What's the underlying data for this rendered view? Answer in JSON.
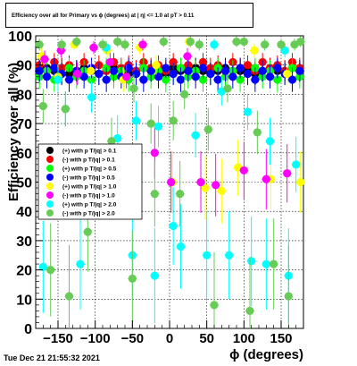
{
  "title": "Efficiency over all for Primary vs ϕ (degrees) at |  η| <= 1.0 at pT > 0.11",
  "footer": "Tue Dec 21 21:55:32 2021",
  "chart_data": {
    "type": "scatter",
    "title": "Efficiency over all for Primary vs ϕ (degrees) at |  η| <= 1.0 at pT > 0.11",
    "xlabel": "ϕ (degrees)",
    "ylabel": "Efficiency over all (%)",
    "xlim": [
      -180,
      180
    ],
    "ylim": [
      0,
      100
    ],
    "x_ticks": [
      -150,
      -100,
      -50,
      0,
      50,
      100,
      150
    ],
    "x_tick_labels": [
      "−150",
      "−100",
      "−50",
      "0",
      "50",
      "100",
      "150"
    ],
    "y_ticks": [
      0,
      10,
      20,
      30,
      40,
      50,
      60,
      70,
      80,
      90,
      100
    ],
    "grid": true,
    "legend_position": "left-middle",
    "series": [
      {
        "name": "(+) with p T/|q| > 0.1",
        "color": "#000000",
        "x": [
          -175,
          -165,
          -155,
          -145,
          -135,
          -125,
          -115,
          -105,
          -95,
          -85,
          -75,
          -65,
          -55,
          -45,
          -35,
          -25,
          -15,
          -5,
          5,
          15,
          25,
          35,
          45,
          55,
          65,
          75,
          85,
          95,
          105,
          115,
          125,
          135,
          145,
          155,
          165,
          175
        ],
        "y": [
          88,
          89,
          88,
          89,
          87,
          88,
          89,
          88,
          87,
          88,
          89,
          88,
          87,
          88,
          89,
          88,
          88,
          87,
          89,
          88,
          88,
          89,
          88,
          87,
          88,
          89,
          88,
          88,
          89,
          87,
          88,
          89,
          88,
          88,
          89,
          88
        ]
      },
      {
        "name": "(-) with p T/|q| > 0.1",
        "color": "#ff0000",
        "x": [
          -175,
          -165,
          -155,
          -145,
          -135,
          -125,
          -115,
          -105,
          -95,
          -85,
          -75,
          -65,
          -55,
          -45,
          -35,
          -25,
          -15,
          -5,
          5,
          15,
          25,
          35,
          45,
          55,
          65,
          75,
          85,
          95,
          105,
          115,
          125,
          135,
          145,
          155,
          165,
          175
        ],
        "y": [
          90,
          88,
          91,
          89,
          90,
          88,
          91,
          89,
          90,
          88,
          91,
          89,
          90,
          88,
          91,
          89,
          90,
          88,
          91,
          89,
          90,
          88,
          91,
          89,
          90,
          88,
          91,
          89,
          90,
          88,
          91,
          89,
          90,
          88,
          91,
          89
        ]
      },
      {
        "name": "(+) with p T/|q| > 0.5",
        "color": "#00ff00",
        "x": [
          -175,
          -165,
          -155,
          -145,
          -135,
          -125,
          -115,
          -105,
          -95,
          -85,
          -75,
          -65,
          -55,
          -45,
          -35,
          -25,
          -15,
          -5,
          5,
          15,
          25,
          35,
          45,
          55,
          65,
          75,
          85,
          95,
          105,
          115,
          125,
          135,
          145,
          155,
          165,
          175
        ],
        "y": [
          86,
          88,
          85,
          87,
          89,
          86,
          88,
          85,
          87,
          89,
          86,
          88,
          85,
          87,
          89,
          86,
          88,
          85,
          87,
          89,
          86,
          88,
          85,
          87,
          89,
          86,
          88,
          85,
          87,
          89,
          86,
          88,
          85,
          87,
          89,
          86
        ]
      },
      {
        "name": "(-) with p T/|q| > 0.5",
        "color": "#0000ff",
        "x": [
          -175,
          -165,
          -155,
          -145,
          -135,
          -125,
          -115,
          -105,
          -95,
          -85,
          -75,
          -65,
          -55,
          -45,
          -35,
          -25,
          -15,
          -5,
          5,
          15,
          25,
          35,
          45,
          55,
          65,
          75,
          85,
          95,
          105,
          115,
          125,
          135,
          145,
          155,
          165,
          175
        ],
        "y": [
          88,
          86,
          89,
          87,
          85,
          88,
          86,
          89,
          87,
          85,
          88,
          86,
          89,
          87,
          85,
          88,
          86,
          89,
          87,
          85,
          88,
          86,
          89,
          87,
          85,
          88,
          86,
          89,
          87,
          85,
          88,
          86,
          89,
          87,
          85,
          88
        ]
      },
      {
        "name": "(+) with p T/|q| > 1.0",
        "color": "#ffff00",
        "x": [
          -172,
          -150,
          -128,
          -106,
          -84,
          -62,
          -40,
          -18,
          4,
          26,
          48,
          70,
          92,
          114,
          136,
          158,
          176
        ],
        "y": [
          93,
          86,
          97,
          88,
          95,
          85,
          96,
          90,
          50,
          98,
          48,
          47,
          55,
          95,
          51,
          87,
          50
        ]
      },
      {
        "name": "(-) with p T/|q| > 1.0",
        "color": "#ff00ff",
        "x": [
          -168,
          -146,
          -124,
          -102,
          -80,
          -58,
          -36,
          -20,
          2,
          24,
          42,
          62,
          100,
          130,
          158
        ],
        "y": [
          92,
          95,
          87,
          96,
          91,
          86,
          97,
          60,
          50,
          93,
          50,
          49,
          54,
          51,
          53
        ]
      },
      {
        "name": "(+) with p T/|q| > 2.0",
        "color": "#00ffff",
        "x": [
          -170,
          -150,
          -140,
          -120,
          -105,
          -85,
          -70,
          -50,
          -45,
          -20,
          -15,
          5,
          15,
          35,
          50,
          60,
          70,
          80,
          105,
          110,
          130,
          135,
          155,
          160,
          170
        ],
        "y": [
          21,
          85,
          75,
          22,
          79,
          96,
          65,
          25,
          71,
          18,
          69,
          35,
          28,
          66,
          25,
          97,
          81,
          25,
          74,
          23,
          22,
          64,
          95,
          18,
          56
        ]
      },
      {
        "name": "(-) with p T/|q| > 2.0",
        "color": "#66cc55",
        "x": [
          -175,
          -170,
          -160,
          -145,
          -140,
          -135,
          -125,
          -110,
          -90,
          -78,
          -70,
          -60,
          -50,
          -48,
          -25,
          -20,
          -8,
          5,
          14,
          20,
          28,
          40,
          52,
          60,
          78,
          90,
          100,
          108,
          118,
          128,
          140,
          150,
          160,
          168,
          176
        ],
        "y": [
          97,
          76,
          20,
          97,
          75,
          11,
          98,
          33,
          97,
          64,
          98,
          97,
          17,
          82,
          70,
          46,
          98,
          71,
          46,
          80,
          98,
          97,
          68,
          8,
          82,
          98,
          98,
          6,
          67,
          97,
          22,
          97,
          11,
          97,
          98
        ]
      }
    ]
  }
}
